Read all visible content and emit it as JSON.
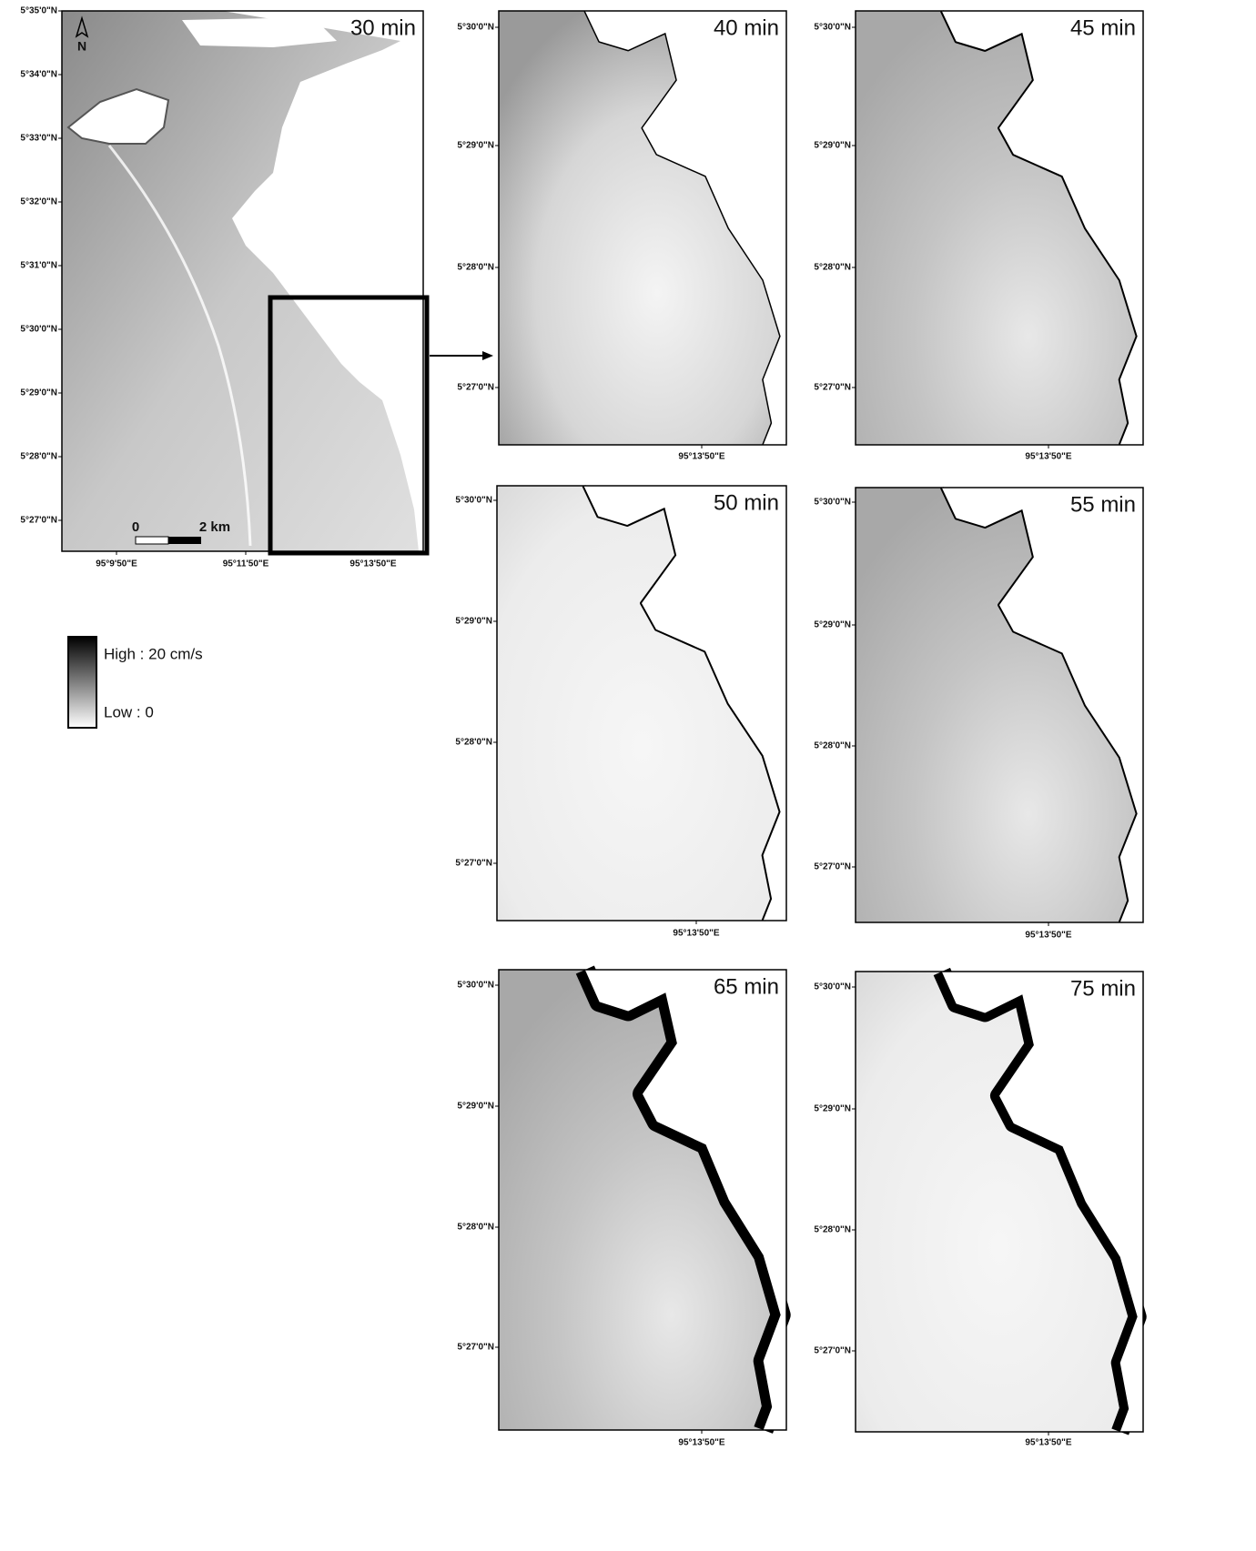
{
  "panels": [
    {
      "title": "30 min",
      "y_labels": [
        "5°35'0\"N",
        "5°34'0\"N",
        "5°33'0\"N",
        "5°32'0\"N",
        "5°31'0\"N",
        "5°30'0\"N",
        "5°29'0\"N",
        "5°28'0\"N",
        "5°27'0\"N"
      ],
      "x_labels": [
        "95°9'50\"E",
        "95°11'50\"E",
        "95°13'50\"E"
      ]
    },
    {
      "title": "40 min",
      "y_labels": [
        "5°30'0\"N",
        "5°29'0\"N",
        "5°28'0\"N",
        "5°27'0\"N"
      ],
      "x_labels": [
        "95°13'50\"E"
      ]
    },
    {
      "title": "45 min",
      "y_labels": [
        "5°30'0\"N",
        "5°29'0\"N",
        "5°28'0\"N",
        "5°27'0\"N"
      ],
      "x_labels": [
        "95°13'50\"E"
      ]
    },
    {
      "title": "50 min",
      "y_labels": [
        "5°30'0\"N",
        "5°29'0\"N",
        "5°28'0\"N",
        "5°27'0\"N"
      ],
      "x_labels": [
        "95°13'50\"E"
      ]
    },
    {
      "title": "55 min",
      "y_labels": [
        "5°30'0\"N",
        "5°29'0\"N",
        "5°28'0\"N",
        "5°27'0\"N"
      ],
      "x_labels": [
        "95°13'50\"E"
      ]
    },
    {
      "title": "65 min",
      "y_labels": [
        "5°30'0\"N",
        "5°29'0\"N",
        "5°28'0\"N",
        "5°27'0\"N"
      ],
      "x_labels": [
        "95°13'50\"E"
      ]
    },
    {
      "title": "75 min",
      "y_labels": [
        "5°30'0\"N",
        "5°29'0\"N",
        "5°28'0\"N",
        "5°27'0\"N"
      ],
      "x_labels": [
        "95°13'50\"E"
      ]
    }
  ],
  "scale_bar": {
    "start": "0",
    "end": "2 km"
  },
  "north": "N",
  "legend": {
    "high": "High : 20 cm/s",
    "low": "Low : 0"
  }
}
